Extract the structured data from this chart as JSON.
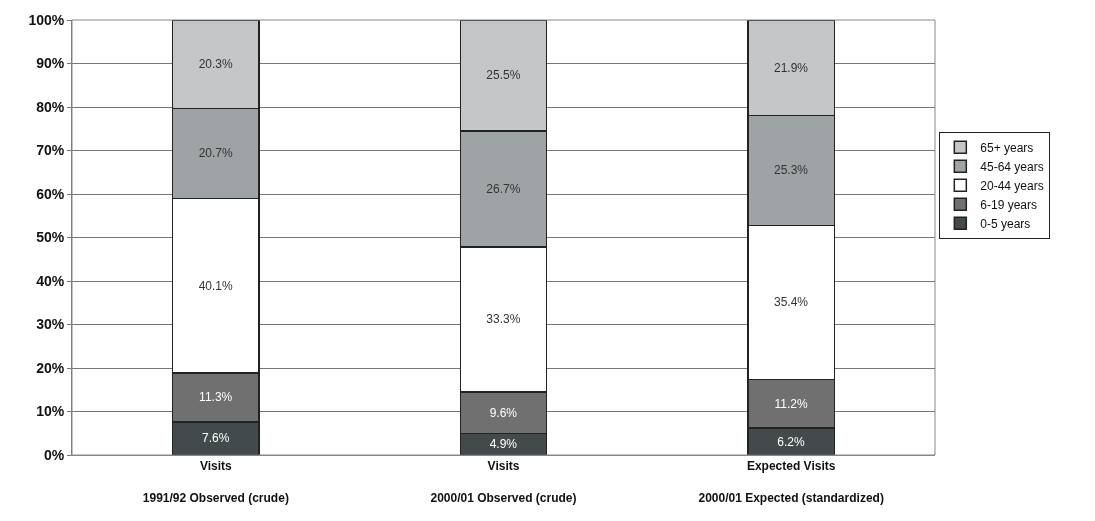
{
  "chart_data": {
    "type": "bar",
    "stacked": true,
    "categories": [
      "Visits\n\n1991/92 Observed (crude)",
      "Visits\n\n2000/01 Observed (crude)",
      "Expected Visits\n\n2000/01 Expected (standardized)"
    ],
    "series": [
      {
        "name": "0-5 years",
        "color": "#434a4c",
        "values": [
          7.6,
          4.9,
          6.2
        ],
        "value_labels": [
          "7.6%",
          "4.9%",
          "6.2%"
        ]
      },
      {
        "name": "6-19 years",
        "color": "#707070",
        "values": [
          11.3,
          9.6,
          11.2
        ],
        "value_labels": [
          "11.3%",
          "9.6%",
          "11.2%"
        ]
      },
      {
        "name": "20-44 years",
        "color": "#ffffff",
        "values": [
          40.1,
          33.3,
          35.4
        ],
        "value_labels": [
          "40.1%",
          "33.3%",
          "35.4%"
        ]
      },
      {
        "name": "45-64 years",
        "color": "#9ea3a6",
        "values": [
          20.7,
          26.7,
          25.3
        ],
        "value_labels": [
          "20.7%",
          "26.7%",
          "25.3%"
        ]
      },
      {
        "name": "65+ years",
        "color": "#c4c6c8",
        "values": [
          20.3,
          25.5,
          21.9
        ],
        "value_labels": [
          "20.3%",
          "25.5%",
          "21.9%"
        ]
      }
    ],
    "ylim": [
      0,
      100
    ],
    "yticks": [
      {
        "value": 0,
        "label": "0%"
      },
      {
        "value": 10,
        "label": "10%"
      },
      {
        "value": 20,
        "label": "20%"
      },
      {
        "value": 30,
        "label": "30%"
      },
      {
        "value": 40,
        "label": "40%"
      },
      {
        "value": 50,
        "label": "50%"
      },
      {
        "value": 60,
        "label": "60%"
      },
      {
        "value": 70,
        "label": "70%"
      },
      {
        "value": 80,
        "label": "80%"
      },
      {
        "value": 90,
        "label": "90%"
      },
      {
        "value": 100,
        "label": "100%"
      }
    ],
    "grid": "y",
    "legend": "right"
  }
}
